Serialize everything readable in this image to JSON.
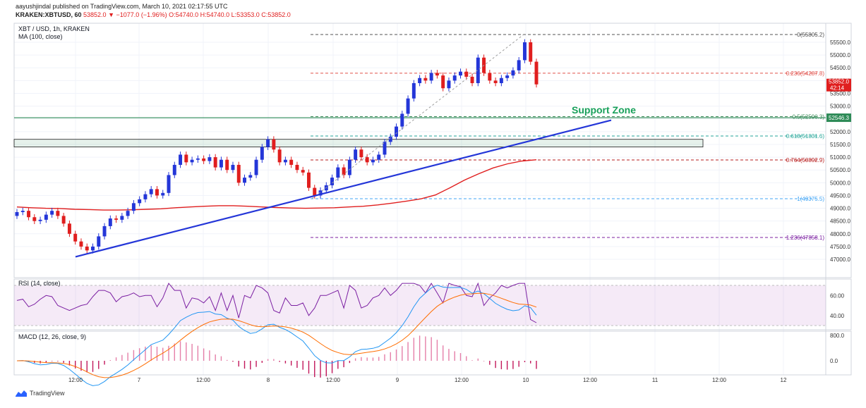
{
  "header": {
    "publisher": "aayushjindal published on TradingView.com, March 10, 2021 02:17:55 UTC",
    "symbol_prefix": "KRAKEN:XBTUSD, 60",
    "last": "53852.0",
    "change": "−1077.0 (−1.96%)",
    "ohlc": "O:54740.0 H:54740.0 L:53353.0 C:53852.0"
  },
  "panes": {
    "main": {
      "title": "XBT / USD, 1h, KRAKEN",
      "subtitle": "MA (100, close)"
    },
    "rsi": {
      "title": "RSI (14, close)"
    },
    "macd": {
      "title": "MACD (12, 26, close, 9)"
    }
  },
  "annotation": {
    "support_zone": "Support Zone"
  },
  "price_tags": {
    "current": "53852.0",
    "countdown": "42:14",
    "support": "52546.3"
  },
  "fib_labels": [
    {
      "text": "0(55805.2)",
      "value": 55805.2,
      "color": "#555555"
    },
    {
      "text": "0.236(54287.8)",
      "value": 54287.8,
      "color": "#e0504a"
    },
    {
      "text": "0.5(52590.3)",
      "value": 52590.3,
      "color": "#3d8c5a"
    },
    {
      "text": "0.618(51831.6)",
      "value": 51831.6,
      "color": "#26a69a"
    },
    {
      "text": "0.764(50892.9)",
      "value": 50892.9,
      "color": "#b71c1c"
    },
    {
      "text": "1(49375.5)",
      "value": 49375.5,
      "color": "#42a5f5"
    },
    {
      "text": "1.236(47858.1)",
      "value": 47858.1,
      "color": "#7b1fa2"
    }
  ],
  "footer": {
    "brand": "TradingView"
  },
  "colors": {
    "up": "#2436d8",
    "down": "#e01e1e",
    "ma": "#e01e1e",
    "trendline": "#2436d8",
    "support": "#2e8b57",
    "rsi": "#7b1fa2"
  },
  "chart_data": {
    "type": "candlestick",
    "y_axis": {
      "ticks": [
        47000,
        47500,
        48000,
        48500,
        49000,
        49500,
        50000,
        50500,
        51000,
        51500,
        52000,
        52500,
        53000,
        53500,
        54000,
        54500,
        55000,
        55500
      ],
      "range": [
        46800,
        55900
      ]
    },
    "x_ticks": [
      "12:00",
      "7",
      "12:00",
      "8",
      "12:00",
      "9",
      "12:00",
      "10",
      "12:00",
      "11",
      "12:00",
      "12"
    ],
    "close_path": [
      48850,
      48900,
      48650,
      48500,
      48550,
      48750,
      48900,
      48700,
      48400,
      48000,
      47700,
      47500,
      47350,
      47500,
      47900,
      48300,
      48600,
      48550,
      48700,
      48900,
      49200,
      49350,
      49550,
      49750,
      49500,
      49600,
      50300,
      50700,
      51100,
      50800,
      50900,
      50950,
      50850,
      51000,
      50600,
      50900,
      50500,
      50700,
      50000,
      50200,
      50300,
      50900,
      51400,
      51700,
      51300,
      50800,
      50900,
      50700,
      50500,
      50400,
      49800,
      49500,
      49700,
      49900,
      50200,
      50600,
      50300,
      50900,
      51300,
      51000,
      50800,
      50900,
      51100,
      51600,
      51800,
      52200,
      52700,
      53300,
      53900,
      54100,
      54000,
      54300,
      54200,
      53700,
      54000,
      54200,
      54350,
      54150,
      53900,
      54900,
      54300,
      54000,
      53900,
      54100,
      54200,
      54400,
      54800,
      55500,
      54740,
      53852
    ],
    "ma100_path": [
      49050,
      49020,
      49000,
      48990,
      48960,
      48950,
      48930,
      48930,
      48940,
      48960,
      48980,
      49020,
      49050,
      49080,
      49100,
      49100,
      49080,
      49050,
      49030,
      49010,
      49000,
      49010,
      49020,
      49050,
      49080,
      49130,
      49200,
      49280,
      49370,
      49520,
      49800,
      50100,
      50350,
      50580,
      50740,
      50850,
      50900
    ],
    "trendline": {
      "from": [
        "12:00 Mar 6",
        47100
      ],
      "to": [
        "Mar 10 ~14:00",
        52450
      ]
    },
    "support_zone": [
      51400,
      51700
    ],
    "support_level": 52546.3,
    "current_price": 53852.0,
    "fibonacci": [
      {
        "level": 0,
        "price": 55805.2
      },
      {
        "level": 0.236,
        "price": 54287.8
      },
      {
        "level": 0.5,
        "price": 52590.3
      },
      {
        "level": 0.618,
        "price": 51831.6
      },
      {
        "level": 0.764,
        "price": 50892.9
      },
      {
        "level": 1,
        "price": 49375.5
      },
      {
        "level": 1.236,
        "price": 47858.1
      }
    ],
    "rsi": {
      "ticks": [
        40,
        60
      ],
      "band": [
        30,
        70
      ]
    },
    "macd": {
      "ticks": [
        0.0,
        800.0
      ]
    }
  }
}
